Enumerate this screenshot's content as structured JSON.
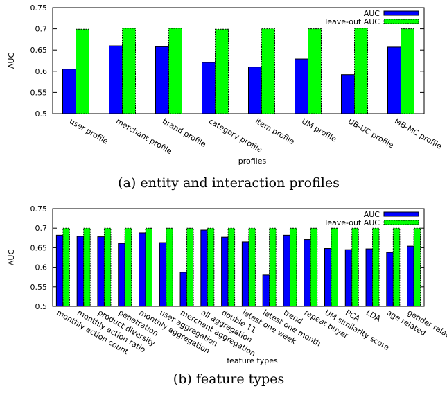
{
  "colors": {
    "auc": "#0000ff",
    "leave_out_auc": "#00ff00",
    "axis": "#000000"
  },
  "chart_data": [
    {
      "type": "bar",
      "caption": "(a) entity and interaction profiles",
      "xlabel": "profiles",
      "ylabel": "AUC",
      "ylim": [
        0.5,
        0.75
      ],
      "yticks": [
        "0.5",
        "0.55",
        "0.6",
        "0.65",
        "0.7",
        "0.75"
      ],
      "grid": false,
      "legend_position": "top-right",
      "categories": [
        "user profile",
        "merchant profile",
        "brand profile",
        "category profile",
        "item profile",
        "UM profile",
        "UB-UC profile",
        "MB-MC profile"
      ],
      "series": [
        {
          "name": "AUC",
          "values": [
            0.605,
            0.66,
            0.658,
            0.621,
            0.61,
            0.629,
            0.592,
            0.657
          ]
        },
        {
          "name": "leave-out AUC",
          "values": [
            0.699,
            0.701,
            0.701,
            0.699,
            0.7,
            0.7,
            0.701,
            0.7
          ]
        }
      ]
    },
    {
      "type": "bar",
      "caption": "(b) feature types",
      "xlabel": "feature types",
      "ylabel": "AUC",
      "ylim": [
        0.5,
        0.75
      ],
      "yticks": [
        "0.5",
        "0.55",
        "0.6",
        "0.65",
        "0.7",
        "0.75"
      ],
      "grid": false,
      "legend_position": "top-right",
      "categories": [
        "monthly action count",
        "monthly action ratio",
        "product diversity",
        "penetration",
        "monthly aggregation",
        "user aggregation",
        "merchant aggregation",
        "all aggregation",
        "double 11",
        "latest one week",
        "latest one month",
        "trend",
        "repeat buyer",
        "UM similarity score",
        "PCA",
        "LDA",
        "age related",
        "gender related"
      ],
      "series": [
        {
          "name": "AUC",
          "values": [
            0.682,
            0.679,
            0.678,
            0.661,
            0.688,
            0.663,
            0.587,
            0.695,
            0.677,
            0.665,
            0.58,
            0.682,
            0.671,
            0.648,
            0.645,
            0.647,
            0.638,
            0.654
          ]
        },
        {
          "name": "leave-out AUC",
          "values": [
            0.7,
            0.7,
            0.7,
            0.7,
            0.7,
            0.7,
            0.7,
            0.7,
            0.7,
            0.7,
            0.7,
            0.7,
            0.7,
            0.7,
            0.7,
            0.7,
            0.7,
            0.7
          ]
        }
      ]
    }
  ]
}
